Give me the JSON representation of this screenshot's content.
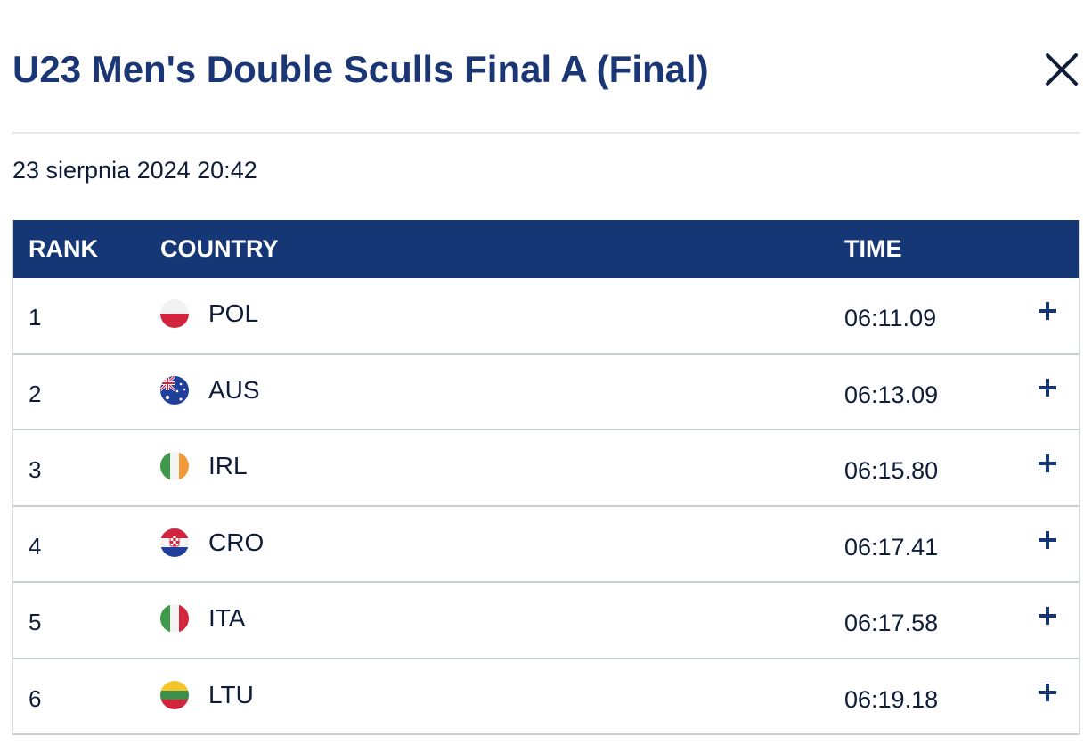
{
  "header": {
    "title": "U23 Men's Double Sculls Final A (Final)",
    "close_icon": "close-icon"
  },
  "date": "23 sierpnia 2024 20:42",
  "table": {
    "columns": {
      "rank": "RANK",
      "country": "COUNTRY",
      "time": "TIME"
    },
    "rows": [
      {
        "rank": "1",
        "country": "POL",
        "time": "06:11.09",
        "flag": "flag-poland-icon"
      },
      {
        "rank": "2",
        "country": "AUS",
        "time": "06:13.09",
        "flag": "flag-australia-icon"
      },
      {
        "rank": "3",
        "country": "IRL",
        "time": "06:15.80",
        "flag": "flag-ireland-icon"
      },
      {
        "rank": "4",
        "country": "CRO",
        "time": "06:17.41",
        "flag": "flag-croatia-icon"
      },
      {
        "rank": "5",
        "country": "ITA",
        "time": "06:17.58",
        "flag": "flag-italy-icon"
      },
      {
        "rank": "6",
        "country": "LTU",
        "time": "06:19.18",
        "flag": "flag-lithuania-icon"
      }
    ]
  },
  "colors": {
    "title": "#1a3675",
    "header_bg": "#163776",
    "text": "#101d3a",
    "expand_icon": "#163776"
  }
}
